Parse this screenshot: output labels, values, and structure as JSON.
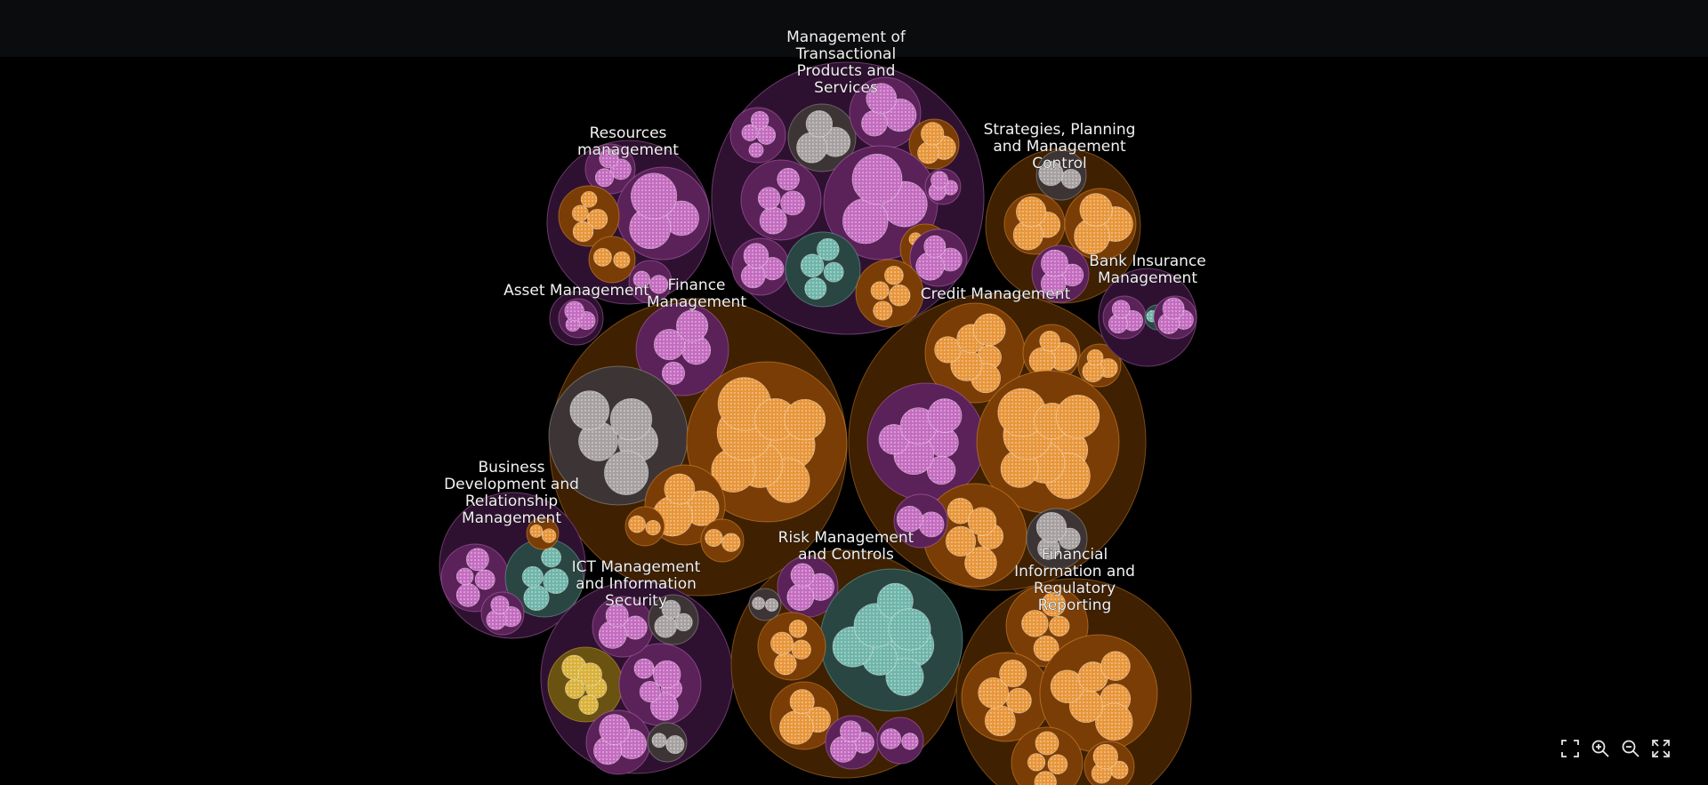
{
  "colors": {
    "background": "#000000",
    "topbar": "#0b0c0e",
    "purple_fill": "#2e1130",
    "brown_fill": "#3f2000",
    "orange": "#e8963a",
    "pink": "#c46cc0",
    "grey": "#a6a0a0",
    "teal": "#6fb5aa",
    "yellow": "#d9b13a"
  },
  "clusters": [
    {
      "id": "mtps",
      "theme": "purple",
      "lines": [
        "Management of",
        "Transactional",
        "Products and",
        "Services"
      ],
      "children": [
        {
          "t": "pink",
          "n": 4
        },
        {
          "t": "grey",
          "n": 3
        },
        {
          "t": "pink",
          "n": 3
        },
        {
          "t": "orange",
          "n": 3
        },
        {
          "t": "pink",
          "n": 4
        },
        {
          "t": "pink",
          "n": 3
        },
        {
          "t": "orange",
          "n": 5
        },
        {
          "t": "pink",
          "n": 3
        },
        {
          "t": "pink",
          "n": 3
        },
        {
          "t": "teal",
          "n": 4
        },
        {
          "t": "orange",
          "n": 4
        },
        {
          "t": "pink",
          "n": 3
        }
      ]
    },
    {
      "id": "resources",
      "theme": "purple",
      "lines": [
        "Resources",
        "management"
      ],
      "children": [
        {
          "t": "pink",
          "n": 3
        },
        {
          "t": "pink",
          "n": 3
        },
        {
          "t": "orange",
          "n": 4
        },
        {
          "t": "orange",
          "n": 2
        },
        {
          "t": "pink",
          "n": 2
        }
      ]
    },
    {
      "id": "spmc",
      "theme": "brown",
      "lines": [
        "Strategies, Planning",
        "and Management",
        "Control"
      ],
      "children": [
        {
          "t": "grey",
          "n": 2
        },
        {
          "t": "orange",
          "n": 3
        },
        {
          "t": "orange",
          "n": 3
        },
        {
          "t": "pink",
          "n": 3
        }
      ]
    },
    {
      "id": "asset",
      "theme": "purple",
      "lines": [
        "Asset Management"
      ],
      "children": [
        {
          "t": "pink",
          "n": 3
        }
      ]
    },
    {
      "id": "finance",
      "theme": "brown",
      "lines": [
        "Finance",
        "Management"
      ],
      "children": [
        {
          "t": "pink",
          "n": 4
        },
        {
          "t": "grey",
          "n": 5
        },
        {
          "t": "orange",
          "n": 8
        },
        {
          "t": "orange",
          "n": 3
        },
        {
          "t": "orange",
          "n": 2
        },
        {
          "t": "orange",
          "n": 2
        }
      ]
    },
    {
      "id": "credit",
      "theme": "brown",
      "lines": [
        "Credit Management"
      ],
      "children": [
        {
          "t": "orange",
          "n": 6
        },
        {
          "t": "orange",
          "n": 3
        },
        {
          "t": "orange",
          "n": 3
        },
        {
          "t": "pink",
          "n": 6
        },
        {
          "t": "orange",
          "n": 8
        },
        {
          "t": "orange",
          "n": 5
        },
        {
          "t": "grey",
          "n": 3
        },
        {
          "t": "pink",
          "n": 2
        }
      ]
    },
    {
      "id": "bankins",
      "theme": "purple",
      "lines": [
        "Bank Insurance",
        "Management"
      ],
      "children": [
        {
          "t": "pink",
          "n": 3
        },
        {
          "t": "teal",
          "n": 2
        },
        {
          "t": "pink",
          "n": 3
        }
      ]
    },
    {
      "id": "busdev",
      "theme": "purple",
      "lines": [
        "Business",
        "Development and",
        "Relationship",
        "Management"
      ],
      "children": [
        {
          "t": "pink",
          "n": 4
        },
        {
          "t": "teal",
          "n": 4
        },
        {
          "t": "pink",
          "n": 3
        },
        {
          "t": "orange",
          "n": 2
        }
      ]
    },
    {
      "id": "ict",
      "theme": "purple",
      "lines": [
        "ICT Management",
        "and Information",
        "Security"
      ],
      "children": [
        {
          "t": "yellow",
          "n": 5
        },
        {
          "t": "pink",
          "n": 5
        },
        {
          "t": "pink",
          "n": 3
        },
        {
          "t": "grey",
          "n": 3
        },
        {
          "t": "pink",
          "n": 3
        },
        {
          "t": "grey",
          "n": 2
        }
      ]
    },
    {
      "id": "risk",
      "theme": "brown",
      "lines": [
        "Risk Management",
        "and Controls"
      ],
      "children": [
        {
          "t": "pink",
          "n": 3
        },
        {
          "t": "teal",
          "n": 7
        },
        {
          "t": "orange",
          "n": 4
        },
        {
          "t": "orange",
          "n": 3
        },
        {
          "t": "pink",
          "n": 3
        },
        {
          "t": "pink",
          "n": 2
        },
        {
          "t": "grey",
          "n": 2
        }
      ]
    },
    {
      "id": "fir",
      "theme": "brown",
      "lines": [
        "Financial",
        "Information and",
        "Regulatory",
        "Reporting"
      ],
      "children": [
        {
          "t": "orange",
          "n": 4
        },
        {
          "t": "orange",
          "n": 4
        },
        {
          "t": "orange",
          "n": 6
        },
        {
          "t": "orange",
          "n": 4
        },
        {
          "t": "orange",
          "n": 3
        }
      ]
    }
  ],
  "toolbar": [
    {
      "name": "fit-to-screen-icon",
      "title": "Fit to screen"
    },
    {
      "name": "zoom-in-icon",
      "title": "Zoom in"
    },
    {
      "name": "zoom-out-icon",
      "title": "Zoom out"
    },
    {
      "name": "fullscreen-icon",
      "title": "Full screen"
    }
  ]
}
